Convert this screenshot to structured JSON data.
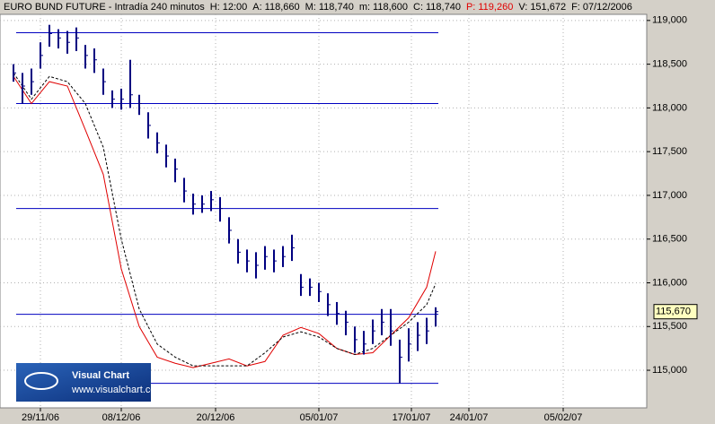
{
  "chart_data": {
    "type": "ohlc",
    "title": "EURO BUND FUTURE - Intradía 240 minutos",
    "header_fields": [
      {
        "label": "H:",
        "value": "12:00",
        "color": "#000000"
      },
      {
        "label": "A:",
        "value": "118,660",
        "color": "#000000"
      },
      {
        "label": "M:",
        "value": "118,740",
        "color": "#000000"
      },
      {
        "label": "m:",
        "value": "118,600",
        "color": "#000000"
      },
      {
        "label": "C:",
        "value": "118,740",
        "color": "#000000"
      },
      {
        "label": "P:",
        "value": "119,260",
        "color": "#e00000"
      },
      {
        "label": "V:",
        "value": "151,672",
        "color": "#000000"
      },
      {
        "label": "F:",
        "value": "07/12/2006",
        "color": "#000000"
      }
    ],
    "xlim": [
      -3,
      141
    ],
    "xticks": [
      {
        "value": 6,
        "label": "29/11/06"
      },
      {
        "value": 24,
        "label": "08/12/06"
      },
      {
        "value": 45,
        "label": "20/12/06"
      },
      {
        "value": 68,
        "label": "05/01/07"
      },
      {
        "value": 88.6,
        "label": "17/01/07"
      },
      {
        "value": 101.4,
        "label": "24/01/07"
      },
      {
        "value": 122.4,
        "label": "05/02/07"
      }
    ],
    "ylim": [
      114.57,
      119.07
    ],
    "yticks": [
      {
        "value": 115,
        "label": "115,000"
      },
      {
        "value": 115.5,
        "label": "115,500"
      },
      {
        "value": 116,
        "label": "116,000"
      },
      {
        "value": 116.5,
        "label": "116,500"
      },
      {
        "value": 117,
        "label": "117,000"
      },
      {
        "value": 117.5,
        "label": "117,500"
      },
      {
        "value": 118,
        "label": "118,000"
      },
      {
        "value": 118.5,
        "label": "118,500"
      },
      {
        "value": 119,
        "label": "119,000"
      }
    ],
    "grid": true,
    "bar_color": "#000080",
    "bars": {
      "x": [
        0,
        2,
        4,
        6,
        8,
        10,
        12,
        14,
        16,
        18,
        20,
        22,
        24,
        26,
        28,
        30,
        32,
        34,
        36,
        38,
        40,
        42,
        44,
        46,
        48,
        50,
        52,
        54,
        56,
        58,
        60,
        62,
        64,
        66,
        68,
        70,
        72,
        74,
        76,
        78,
        80,
        82,
        84,
        86,
        88,
        90,
        92,
        94
      ],
      "close": [
        118.4,
        118.25,
        118.3,
        118.6,
        118.85,
        118.8,
        118.75,
        118.8,
        118.6,
        118.55,
        118.3,
        118.1,
        118.1,
        118.15,
        118.05,
        117.8,
        117.6,
        117.45,
        117.3,
        117.05,
        116.9,
        116.9,
        116.95,
        116.85,
        116.6,
        116.35,
        116.25,
        116.2,
        116.3,
        116.25,
        116.3,
        116.4,
        115.95,
        115.95,
        115.9,
        115.75,
        115.65,
        115.55,
        115.35,
        115.3,
        115.45,
        115.55,
        115.45,
        115.15,
        115.3,
        115.4,
        115.45,
        115.67
      ],
      "high": [
        118.5,
        118.4,
        118.45,
        118.75,
        118.95,
        118.9,
        118.88,
        118.92,
        118.72,
        118.68,
        118.45,
        118.2,
        118.22,
        118.55,
        118.15,
        117.95,
        117.72,
        117.58,
        117.42,
        117.2,
        117.02,
        117.0,
        117.05,
        116.98,
        116.75,
        116.5,
        116.38,
        116.35,
        116.42,
        116.38,
        116.42,
        116.55,
        116.1,
        116.05,
        116.0,
        115.88,
        115.78,
        115.68,
        115.5,
        115.45,
        115.58,
        115.7,
        115.7,
        115.35,
        115.48,
        115.55,
        115.6,
        115.72
      ],
      "low": [
        118.3,
        118.05,
        118.15,
        118.45,
        118.7,
        118.68,
        118.62,
        118.65,
        118.45,
        118.4,
        118.15,
        118.0,
        117.98,
        118.0,
        117.92,
        117.65,
        117.48,
        117.32,
        117.15,
        116.92,
        116.78,
        116.8,
        116.82,
        116.7,
        116.45,
        116.22,
        116.12,
        116.05,
        116.15,
        116.12,
        116.18,
        116.25,
        115.85,
        115.85,
        115.78,
        115.62,
        115.52,
        115.4,
        115.2,
        115.18,
        115.3,
        115.4,
        115.28,
        114.85,
        115.1,
        115.22,
        115.3,
        115.5
      ]
    },
    "series": [
      {
        "name": "MA1",
        "color": "#e00000",
        "dashed": false,
        "x": [
          0,
          4,
          8,
          12,
          16,
          20,
          24,
          28,
          32,
          36,
          40,
          44,
          48,
          52,
          56,
          60,
          64,
          68,
          72,
          76,
          80,
          84,
          88,
          92,
          94
        ],
        "values": [
          118.36,
          118.05,
          118.3,
          118.25,
          117.75,
          117.24,
          116.16,
          115.5,
          115.15,
          115.08,
          115.03,
          115.08,
          115.13,
          115.05,
          115.1,
          115.4,
          115.49,
          115.42,
          115.25,
          115.18,
          115.2,
          115.4,
          115.6,
          115.95,
          116.36
        ]
      },
      {
        "name": "MA2",
        "color": "#000000",
        "dashed": true,
        "x": [
          0,
          4,
          8,
          12,
          16,
          20,
          24,
          28,
          32,
          36,
          40,
          44,
          48,
          52,
          56,
          60,
          64,
          68,
          72,
          76,
          80,
          84,
          88,
          92,
          94
        ],
        "values": [
          118.4,
          118.1,
          118.36,
          118.3,
          118.05,
          117.55,
          116.5,
          115.7,
          115.3,
          115.15,
          115.05,
          115.05,
          115.05,
          115.05,
          115.2,
          115.38,
          115.44,
          115.38,
          115.25,
          115.18,
          115.25,
          115.4,
          115.55,
          115.75,
          115.99
        ]
      }
    ],
    "hlines": [
      118.86,
      118.05,
      116.85,
      115.64,
      114.85
    ],
    "hline_color": "#0000c0",
    "last_price": {
      "value": 115.67,
      "label": "115,670"
    },
    "logo": {
      "title": "Visual Chart",
      "url": "www.visualchart.com"
    }
  }
}
